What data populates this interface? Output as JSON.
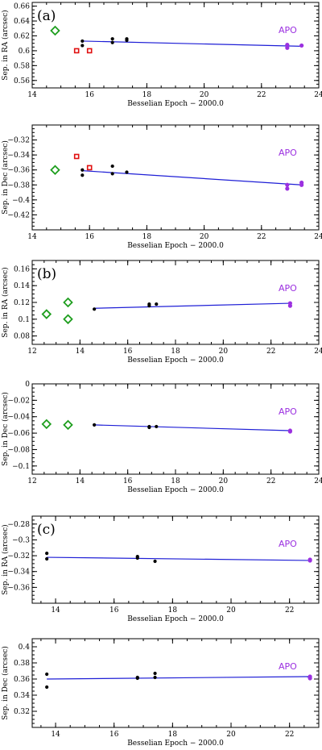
{
  "colors": {
    "fit": "#1f1fd6",
    "apo": "#9b30e0",
    "diamond": "#1e9e1e",
    "square": "#e01010",
    "dot": "#000000"
  },
  "chart_data": [
    {
      "id": "a-ra",
      "panel_label": "(a)",
      "type": "scatter",
      "xlabel": "Besselian Epoch − 2000.0",
      "ylabel": "Sep. in RA (arcsec)",
      "xlim": [
        14,
        24
      ],
      "ylim": [
        0.55,
        0.665
      ],
      "xticks": [
        14,
        16,
        18,
        20,
        22,
        24
      ],
      "yticks": [
        0.56,
        0.58,
        0.6,
        0.62,
        0.64,
        0.66
      ],
      "annotation": "APO",
      "fit": [
        [
          15.75,
          0.613
        ],
        [
          23.4,
          0.606
        ]
      ],
      "series": [
        {
          "marker": "diamond",
          "points": [
            [
              14.8,
              0.627
            ]
          ]
        },
        {
          "marker": "square",
          "points": [
            [
              15.55,
              0.6
            ],
            [
              16.0,
              0.6
            ]
          ]
        },
        {
          "marker": "dot",
          "points": [
            [
              15.75,
              0.613
            ],
            [
              15.75,
              0.607
            ],
            [
              16.8,
              0.616
            ],
            [
              16.8,
              0.611
            ],
            [
              17.3,
              0.616
            ],
            [
              17.3,
              0.614
            ]
          ]
        },
        {
          "marker": "apo",
          "points": [
            [
              22.9,
              0.608
            ],
            [
              22.9,
              0.604
            ],
            [
              23.4,
              0.607
            ]
          ]
        }
      ]
    },
    {
      "id": "a-dec",
      "panel_label": "",
      "type": "scatter",
      "xlabel": "Besselian Epoch − 2000.0",
      "ylabel": "Sep. in Dec (arcsec)",
      "xlim": [
        14,
        24
      ],
      "ylim": [
        -0.44,
        -0.3
      ],
      "xticks": [
        14,
        16,
        18,
        20,
        22,
        24
      ],
      "yticks": [
        -0.42,
        -0.4,
        -0.38,
        -0.36,
        -0.34,
        -0.32
      ],
      "annotation": "APO",
      "fit": [
        [
          15.75,
          -0.361
        ],
        [
          23.4,
          -0.38
        ]
      ],
      "series": [
        {
          "marker": "diamond",
          "points": [
            [
              14.8,
              -0.36
            ]
          ]
        },
        {
          "marker": "square",
          "points": [
            [
              15.55,
              -0.342
            ],
            [
              16.0,
              -0.357
            ]
          ]
        },
        {
          "marker": "dot",
          "points": [
            [
              15.75,
              -0.36
            ],
            [
              15.75,
              -0.367
            ],
            [
              16.8,
              -0.355
            ],
            [
              16.8,
              -0.365
            ],
            [
              17.3,
              -0.363
            ]
          ]
        },
        {
          "marker": "apo",
          "points": [
            [
              22.9,
              -0.38
            ],
            [
              22.9,
              -0.385
            ],
            [
              23.4,
              -0.377
            ],
            [
              23.4,
              -0.38
            ]
          ]
        }
      ]
    },
    {
      "id": "b-ra",
      "panel_label": "(b)",
      "type": "scatter",
      "xlabel": "Besselian Epoch − 2000.0",
      "ylabel": "Sep. in RA (arcsec)",
      "xlim": [
        12,
        24
      ],
      "ylim": [
        0.07,
        0.17
      ],
      "xticks": [
        12,
        14,
        16,
        18,
        20,
        22,
        24
      ],
      "yticks": [
        0.08,
        0.1,
        0.12,
        0.14,
        0.16
      ],
      "annotation": "APO",
      "fit": [
        [
          14.6,
          0.113
        ],
        [
          22.8,
          0.119
        ]
      ],
      "series": [
        {
          "marker": "diamond",
          "points": [
            [
              12.6,
              0.106
            ],
            [
              13.5,
              0.12
            ],
            [
              13.5,
              0.1
            ]
          ]
        },
        {
          "marker": "dot",
          "points": [
            [
              14.6,
              0.112
            ],
            [
              16.9,
              0.118
            ],
            [
              16.9,
              0.116
            ],
            [
              17.2,
              0.118
            ]
          ]
        },
        {
          "marker": "apo",
          "points": [
            [
              22.8,
              0.119
            ],
            [
              22.8,
              0.116
            ]
          ]
        }
      ]
    },
    {
      "id": "b-dec",
      "panel_label": "",
      "type": "scatter",
      "xlabel": "Besselian Epoch − 2000.0",
      "ylabel": "Sep. in Dec (arcsec)",
      "xlim": [
        12,
        24
      ],
      "ylim": [
        -0.11,
        0
      ],
      "xticks": [
        12,
        14,
        16,
        18,
        20,
        22,
        24
      ],
      "yticks": [
        -0.1,
        -0.08,
        -0.06,
        -0.04,
        -0.02,
        0
      ],
      "annotation": "APO",
      "fit": [
        [
          14.6,
          -0.05
        ],
        [
          22.8,
          -0.057
        ]
      ],
      "series": [
        {
          "marker": "diamond",
          "points": [
            [
              12.6,
              -0.049
            ],
            [
              13.5,
              -0.05
            ]
          ]
        },
        {
          "marker": "dot",
          "points": [
            [
              14.6,
              -0.05
            ],
            [
              16.9,
              -0.052
            ],
            [
              16.9,
              -0.053
            ],
            [
              17.2,
              -0.052
            ]
          ]
        },
        {
          "marker": "apo",
          "points": [
            [
              22.8,
              -0.057
            ],
            [
              22.8,
              -0.058
            ]
          ]
        }
      ]
    },
    {
      "id": "c-ra",
      "panel_label": "(c)",
      "type": "scatter",
      "xlabel": "Besselian Epoch − 2000.0",
      "ylabel": "Sep. in RA (arcsec)",
      "xlim": [
        13.2,
        23
      ],
      "ylim": [
        -0.38,
        -0.27
      ],
      "xticks": [
        14,
        16,
        18,
        20,
        22
      ],
      "yticks": [
        -0.36,
        -0.34,
        -0.32,
        -0.3,
        -0.28
      ],
      "annotation": "APO",
      "fit": [
        [
          13.7,
          -0.322
        ],
        [
          22.7,
          -0.326
        ]
      ],
      "series": [
        {
          "marker": "dot",
          "points": [
            [
              13.7,
              -0.317
            ],
            [
              13.7,
              -0.324
            ],
            [
              16.8,
              -0.321
            ],
            [
              16.8,
              -0.323
            ],
            [
              17.4,
              -0.327
            ]
          ]
        },
        {
          "marker": "apo",
          "points": [
            [
              22.7,
              -0.325
            ],
            [
              22.7,
              -0.326
            ]
          ]
        }
      ]
    },
    {
      "id": "c-dec",
      "panel_label": "",
      "type": "scatter",
      "xlabel": "Besselian Epoch − 2000.0",
      "ylabel": "Sep. in Dec (arcsec)",
      "xlim": [
        13.2,
        23
      ],
      "ylim": [
        0.3,
        0.41
      ],
      "xticks": [
        14,
        16,
        18,
        20,
        22
      ],
      "yticks": [
        0.32,
        0.34,
        0.36,
        0.38,
        0.4
      ],
      "annotation": "APO",
      "fit": [
        [
          13.7,
          0.36
        ],
        [
          22.7,
          0.363
        ]
      ],
      "series": [
        {
          "marker": "dot",
          "points": [
            [
              13.7,
              0.366
            ],
            [
              13.7,
              0.35
            ],
            [
              16.8,
              0.362
            ],
            [
              16.8,
              0.361
            ],
            [
              17.4,
              0.367
            ],
            [
              17.4,
              0.362
            ]
          ]
        },
        {
          "marker": "apo",
          "points": [
            [
              22.7,
              0.363
            ],
            [
              22.7,
              0.361
            ]
          ]
        }
      ]
    }
  ]
}
